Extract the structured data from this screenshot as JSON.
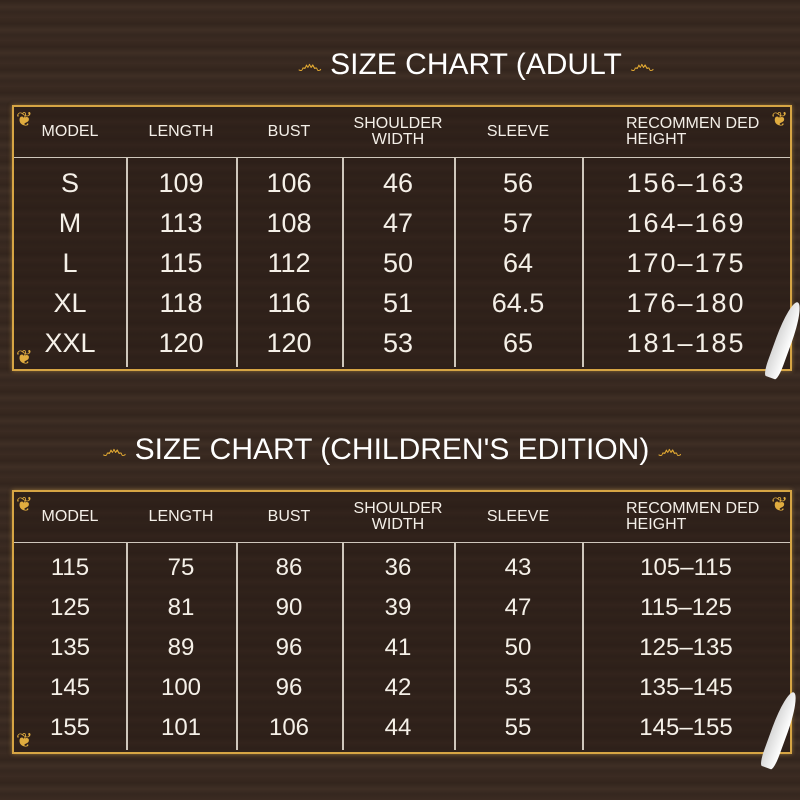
{
  "adult": {
    "title": "SIZE CHART (ADULT",
    "headers": [
      "MODEL",
      "LENGTH",
      "BUST",
      "SHOULDER WIDTH",
      "SLEEVE",
      "RECOMMEN DED HEIGHT"
    ],
    "rows": [
      [
        "S",
        "109",
        "106",
        "46",
        "56",
        "156–163"
      ],
      [
        "M",
        "113",
        "108",
        "47",
        "57",
        "164–169"
      ],
      [
        "L",
        "115",
        "112",
        "50",
        "64",
        "170–175"
      ],
      [
        "XL",
        "118",
        "116",
        "51",
        "64.5",
        "176–180"
      ],
      [
        "XXL",
        "120",
        "120",
        "53",
        "65",
        "181–185"
      ]
    ]
  },
  "children": {
    "title": "SIZE CHART (CHILDREN'S EDITION)",
    "headers": [
      "MODEL",
      "LENGTH",
      "BUST",
      "SHOULDER WIDTH",
      "SLEEVE",
      "RECOMMEN DED HEIGHT"
    ],
    "rows": [
      [
        "115",
        "75",
        "86",
        "36",
        "43",
        "105–115"
      ],
      [
        "125",
        "81",
        "90",
        "39",
        "47",
        "115–125"
      ],
      [
        "135",
        "89",
        "96",
        "41",
        "50",
        "125–135"
      ],
      [
        "145",
        "100",
        "96",
        "42",
        "53",
        "135–145"
      ],
      [
        "155",
        "101",
        "106",
        "44",
        "55",
        "145–155"
      ]
    ]
  },
  "colors": {
    "background": "#3a2a21",
    "gold": "#d6a544",
    "text": "#f5f0e8"
  }
}
